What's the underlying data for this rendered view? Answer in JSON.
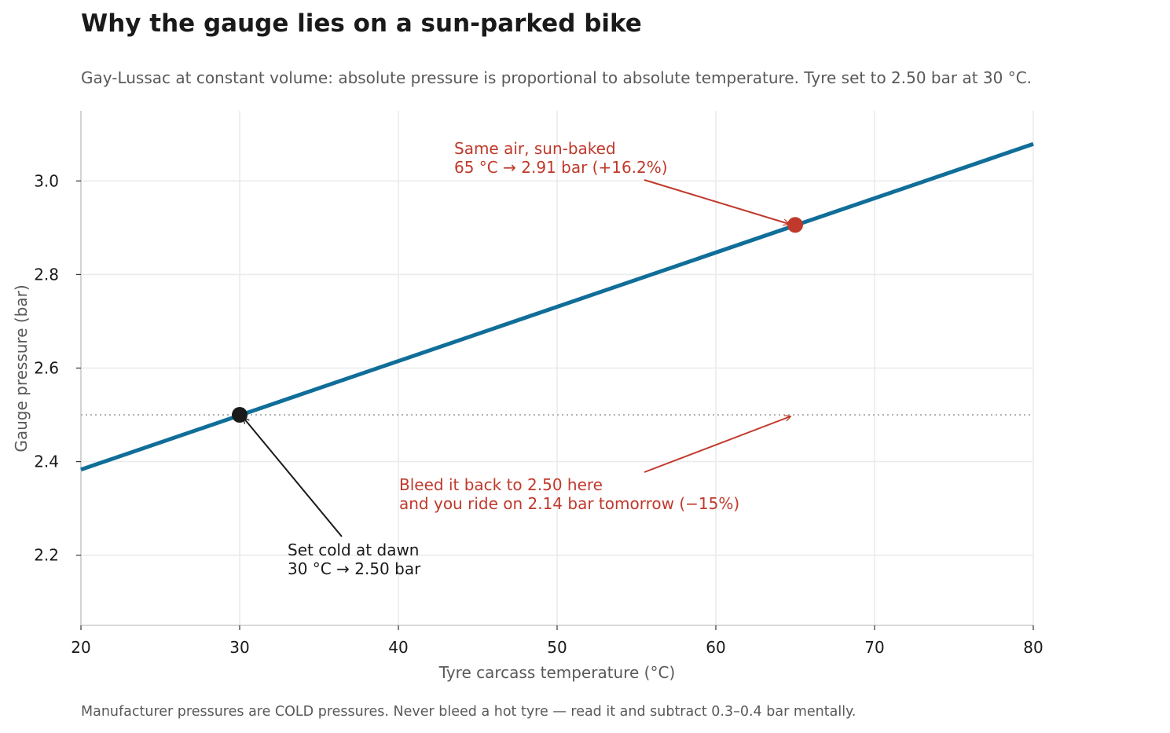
{
  "chart_data": {
    "type": "line",
    "title": "Why the gauge lies on a sun-parked bike",
    "subtitle": "Gay-Lussac at constant volume: absolute pressure is proportional to absolute temperature. Tyre set to 2.50 bar at 30 °C.",
    "footnote": "Manufacturer pressures are COLD pressures. Never bleed a hot tyre — read it and subtract 0.3–0.4 bar mentally.",
    "xlabel": "Tyre carcass temperature (°C)",
    "ylabel": "Gauge pressure (bar)",
    "xlim": [
      20,
      80
    ],
    "ylim": [
      2.05,
      3.15
    ],
    "xticks": [
      20,
      30,
      40,
      50,
      60,
      70,
      80
    ],
    "xtick_labels": [
      "20",
      "30",
      "40",
      "50",
      "60",
      "70",
      "80"
    ],
    "yticks": [
      2.2,
      2.4,
      2.6,
      2.8,
      3.0
    ],
    "ytick_labels": [
      "2.2",
      "2.4",
      "2.6",
      "2.8",
      "3.0"
    ],
    "grid": true,
    "series": [
      {
        "x": [
          20,
          80
        ],
        "y": [
          2.383,
          3.079
        ],
        "color": "#106e99"
      }
    ],
    "reference_line": {
      "y": 2.5,
      "x": [
        20,
        80
      ],
      "style": "dotted",
      "color": "#b3b3b3"
    },
    "points": [
      {
        "x": 30,
        "y": 2.5,
        "color": "#1a1a1a"
      },
      {
        "x": 65,
        "y": 2.906,
        "color": "#c0392b"
      }
    ],
    "annotations": [
      {
        "lines": [
          "Same air, sun-baked",
          "65 °C → 2.91 bar (+16.2%)"
        ],
        "text_x": 43.5,
        "text_y": 3.07,
        "arrow_to": [
          65,
          2.906
        ],
        "color": "#c0392b"
      },
      {
        "lines": [
          "Set cold at dawn",
          "30 °C → 2.50 bar"
        ],
        "text_x": 33,
        "text_y": 2.2,
        "arrow_to": [
          30,
          2.5
        ],
        "color": "#1a1a1a"
      },
      {
        "lines": [
          "Bleed it back to 2.50 here",
          "and you ride on 2.14 bar tomorrow (−15%)"
        ],
        "text_x": 40,
        "text_y": 2.35,
        "arrow_to": [
          65,
          2.5
        ],
        "color": "#c0392b"
      }
    ]
  }
}
